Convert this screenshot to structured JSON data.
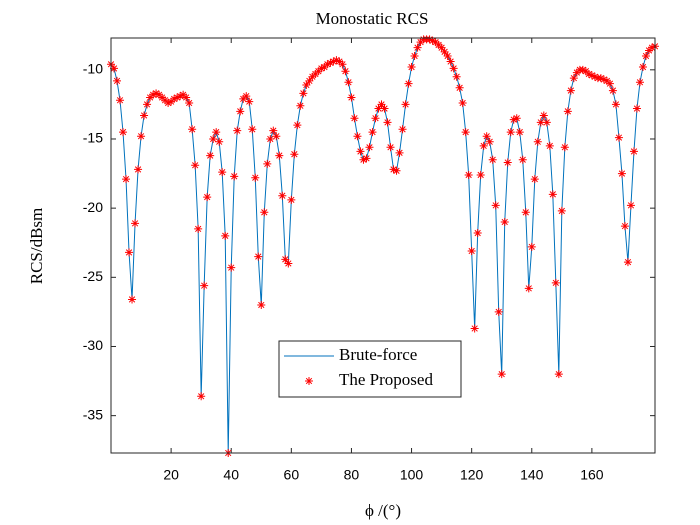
{
  "chart_data": {
    "type": "line",
    "title": "Monostatic RCS",
    "x_label": "ϕ /(°)",
    "y_label": "RCS/dBsm",
    "x": [
      0,
      1,
      2,
      3,
      4,
      5,
      6,
      7,
      8,
      9,
      10,
      11,
      12,
      13,
      14,
      15,
      16,
      17,
      18,
      19,
      20,
      21,
      22,
      23,
      24,
      25,
      26,
      27,
      28,
      29,
      30,
      31,
      32,
      33,
      34,
      35,
      36,
      37,
      38,
      39,
      40,
      41,
      42,
      43,
      44,
      45,
      46,
      47,
      48,
      49,
      50,
      51,
      52,
      53,
      54,
      55,
      56,
      57,
      58,
      59,
      60,
      61,
      62,
      63,
      64,
      65,
      66,
      67,
      68,
      69,
      70,
      71,
      72,
      73,
      74,
      75,
      76,
      77,
      78,
      79,
      80,
      81,
      82,
      83,
      84,
      85,
      86,
      87,
      88,
      89,
      90,
      91,
      92,
      93,
      94,
      95,
      96,
      97,
      98,
      99,
      100,
      101,
      102,
      103,
      104,
      105,
      106,
      107,
      108,
      109,
      110,
      111,
      112,
      113,
      114,
      115,
      116,
      117,
      118,
      119,
      120,
      121,
      122,
      123,
      124,
      125,
      126,
      127,
      128,
      129,
      130,
      131,
      132,
      133,
      134,
      135,
      136,
      137,
      138,
      139,
      140,
      141,
      142,
      143,
      144,
      145,
      146,
      147,
      148,
      149,
      150,
      151,
      152,
      153,
      154,
      155,
      156,
      157,
      158,
      159,
      160,
      161,
      162,
      163,
      164,
      165,
      166,
      167,
      168,
      169,
      170,
      171,
      172,
      173,
      174,
      175,
      176,
      177,
      178,
      179,
      180,
      181
    ],
    "series": [
      {
        "name": "Brute-force",
        "type": "line",
        "color": "#0072bd",
        "values": [
          -9.6,
          -9.9,
          -10.8,
          -12.2,
          -14.5,
          -17.9,
          -23.2,
          -26.6,
          -21.1,
          -17.2,
          -14.8,
          -13.3,
          -12.5,
          -12.0,
          -11.8,
          -11.7,
          -11.8,
          -12.0,
          -12.2,
          -12.4,
          -12.3,
          -12.1,
          -12.0,
          -11.9,
          -11.8,
          -12.0,
          -12.4,
          -14.3,
          -16.9,
          -21.5,
          -33.6,
          -25.6,
          -19.2,
          -16.2,
          -15.0,
          -14.5,
          -15.2,
          -17.4,
          -22.0,
          -37.7,
          -24.3,
          -17.7,
          -14.4,
          -13.0,
          -12.1,
          -11.9,
          -12.3,
          -14.3,
          -17.8,
          -23.5,
          -27.0,
          -20.3,
          -16.8,
          -15.0,
          -14.4,
          -14.8,
          -16.2,
          -19.1,
          -23.7,
          -24.0,
          -19.4,
          -16.1,
          -14.0,
          -12.6,
          -11.7,
          -11.1,
          -10.8,
          -10.5,
          -10.3,
          -10.1,
          -9.9,
          -9.8,
          -9.6,
          -9.5,
          -9.4,
          -9.3,
          -9.4,
          -9.6,
          -10.1,
          -10.9,
          -12.0,
          -13.5,
          -14.8,
          -15.9,
          -16.5,
          -16.4,
          -15.6,
          -14.5,
          -13.5,
          -12.8,
          -12.5,
          -12.8,
          -13.8,
          -15.6,
          -17.2,
          -17.3,
          -16.0,
          -14.3,
          -12.5,
          -11.0,
          -9.8,
          -9.0,
          -8.4,
          -8.0,
          -7.8,
          -7.8,
          -7.8,
          -7.9,
          -8.0,
          -8.2,
          -8.4,
          -8.7,
          -9.0,
          -9.4,
          -9.9,
          -10.5,
          -11.3,
          -12.4,
          -14.5,
          -17.6,
          -23.1,
          -28.7,
          -21.8,
          -17.6,
          -15.5,
          -14.8,
          -15.2,
          -16.5,
          -19.8,
          -27.5,
          -32.0,
          -21.0,
          -16.7,
          -14.5,
          -13.6,
          -13.5,
          -14.5,
          -16.5,
          -20.3,
          -25.8,
          -22.8,
          -17.9,
          -15.2,
          -13.8,
          -13.3,
          -13.8,
          -15.5,
          -19.0,
          -25.4,
          -32.0,
          -20.2,
          -15.6,
          -13.0,
          -11.5,
          -10.6,
          -10.2,
          -10.0,
          -10.0,
          -10.1,
          -10.3,
          -10.4,
          -10.5,
          -10.6,
          -10.6,
          -10.7,
          -10.8,
          -11.0,
          -11.5,
          -12.5,
          -14.9,
          -17.5,
          -21.3,
          -23.9,
          -19.8,
          -15.9,
          -12.8,
          -10.9,
          -9.8,
          -9.0,
          -8.6,
          -8.4,
          -8.3
        ]
      },
      {
        "name": "The Proposed",
        "type": "scatter",
        "color": "#ff0000",
        "values": [
          -9.6,
          -9.9,
          -10.8,
          -12.2,
          -14.5,
          -17.9,
          -23.2,
          -26.6,
          -21.1,
          -17.2,
          -14.8,
          -13.3,
          -12.5,
          -12.0,
          -11.8,
          -11.7,
          -11.8,
          -12.0,
          -12.2,
          -12.4,
          -12.3,
          -12.1,
          -12.0,
          -11.9,
          -11.8,
          -12.0,
          -12.4,
          -14.3,
          -16.9,
          -21.5,
          -33.6,
          -25.6,
          -19.2,
          -16.2,
          -15.0,
          -14.5,
          -15.2,
          -17.4,
          -22.0,
          -37.7,
          -24.3,
          -17.7,
          -14.4,
          -13.0,
          -12.1,
          -11.9,
          -12.3,
          -14.3,
          -17.8,
          -23.5,
          -27.0,
          -20.3,
          -16.8,
          -15.0,
          -14.4,
          -14.8,
          -16.2,
          -19.1,
          -23.7,
          -24.0,
          -19.4,
          -16.1,
          -14.0,
          -12.6,
          -11.7,
          -11.1,
          -10.8,
          -10.5,
          -10.3,
          -10.1,
          -9.9,
          -9.8,
          -9.6,
          -9.5,
          -9.4,
          -9.3,
          -9.4,
          -9.6,
          -10.1,
          -10.9,
          -12.0,
          -13.5,
          -14.8,
          -15.9,
          -16.5,
          -16.4,
          -15.6,
          -14.5,
          -13.5,
          -12.8,
          -12.5,
          -12.8,
          -13.8,
          -15.6,
          -17.2,
          -17.3,
          -16.0,
          -14.3,
          -12.5,
          -11.0,
          -9.8,
          -9.0,
          -8.4,
          -8.0,
          -7.8,
          -7.8,
          -7.8,
          -7.9,
          -8.0,
          -8.2,
          -8.4,
          -8.7,
          -9.0,
          -9.4,
          -9.9,
          -10.5,
          -11.3,
          -12.4,
          -14.5,
          -17.6,
          -23.1,
          -28.7,
          -21.8,
          -17.6,
          -15.5,
          -14.8,
          -15.2,
          -16.5,
          -19.8,
          -27.5,
          -32.0,
          -21.0,
          -16.7,
          -14.5,
          -13.6,
          -13.5,
          -14.5,
          -16.5,
          -20.3,
          -25.8,
          -22.8,
          -17.9,
          -15.2,
          -13.8,
          -13.3,
          -13.8,
          -15.5,
          -19.0,
          -25.4,
          -32.0,
          -20.2,
          -15.6,
          -13.0,
          -11.5,
          -10.6,
          -10.2,
          -10.0,
          -10.0,
          -10.1,
          -10.3,
          -10.4,
          -10.5,
          -10.6,
          -10.6,
          -10.7,
          -10.8,
          -11.0,
          -11.5,
          -12.5,
          -14.9,
          -17.5,
          -21.3,
          -23.9,
          -19.8,
          -15.9,
          -12.8,
          -10.9,
          -9.8,
          -9.0,
          -8.6,
          -8.4,
          -8.3
        ]
      }
    ],
    "xlim": [
      0,
      181
    ],
    "xticks": [
      20,
      40,
      60,
      80,
      100,
      120,
      140,
      160
    ],
    "ylim": [
      -37.7,
      -7.7
    ],
    "yticks": [
      -35,
      -30,
      -25,
      -20,
      -15,
      -10
    ],
    "grid": false,
    "legend": "lower center"
  }
}
